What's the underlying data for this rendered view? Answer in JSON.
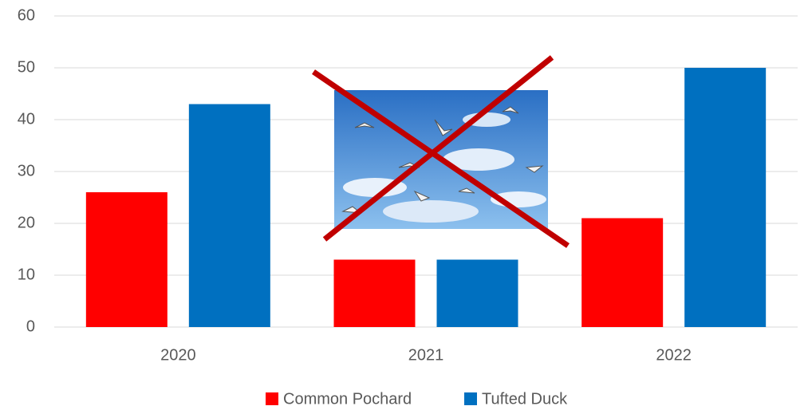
{
  "chart_data": {
    "type": "bar",
    "categories": [
      "2020",
      "2021",
      "2022"
    ],
    "series": [
      {
        "name": "Common Pochard",
        "color": "#ff0000",
        "values": [
          26,
          13,
          21
        ]
      },
      {
        "name": "Tufted Duck",
        "color": "#0070c0",
        "values": [
          43,
          13,
          50
        ]
      }
    ],
    "ylim": [
      0,
      60
    ],
    "yticks": [
      0,
      10,
      20,
      30,
      40,
      50,
      60
    ],
    "grid": true,
    "legend": "bottom"
  }
}
